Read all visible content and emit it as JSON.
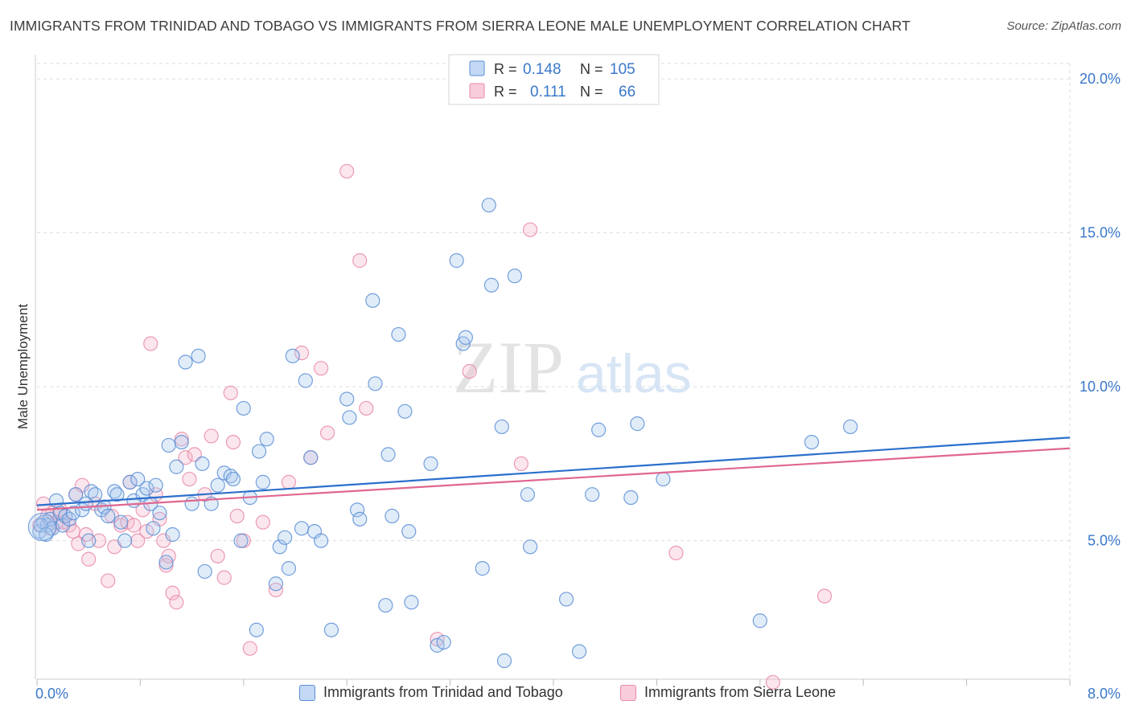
{
  "header": {
    "title": "IMMIGRANTS FROM TRINIDAD AND TOBAGO VS IMMIGRANTS FROM SIERRA LEONE MALE UNEMPLOYMENT CORRELATION CHART",
    "source": "Source: ZipAtlas.com"
  },
  "watermark": {
    "zip": "ZIP",
    "atlas": "atlas"
  },
  "legend": {
    "r_label": "R =",
    "n_label": "N =",
    "rows": [
      {
        "r": "0.148",
        "n": "105"
      },
      {
        "r": "0.111",
        "n": "66"
      }
    ]
  },
  "colors": {
    "blue_fill": "#a8c8ef",
    "blue_stroke": "#5b8fd6",
    "blue_line": "#2b6fcc",
    "pink_fill": "#f5b7ca",
    "pink_stroke": "#e88aa8",
    "pink_line": "#e0678f",
    "axis_text": "#3a78c9",
    "grid": "#dddddd"
  },
  "chart_data": {
    "type": "scatter",
    "ylabel": "Male Unemployment",
    "xlim": [
      0,
      8
    ],
    "ylim": [
      0.5,
      20.5
    ],
    "x_ticks": [
      "0.0%",
      "8.0%"
    ],
    "y_ticks": [
      {
        "value": 5,
        "label": "5.0%"
      },
      {
        "value": 10,
        "label": "10.0%"
      },
      {
        "value": 15,
        "label": "15.0%"
      },
      {
        "value": 20,
        "label": "20.0%"
      }
    ],
    "series": [
      {
        "name": "Immigrants from Trinidad and Tobago",
        "color": "blue",
        "trend": {
          "x0": 0,
          "y0": 6.15,
          "x1": 8,
          "y1": 8.35
        },
        "points": [
          [
            0.02,
            5.3
          ],
          [
            0.05,
            5.6
          ],
          [
            0.08,
            5.5
          ],
          [
            0.1,
            5.7
          ],
          [
            0.12,
            5.4
          ],
          [
            0.15,
            6.3
          ],
          [
            0.18,
            5.9
          ],
          [
            0.2,
            5.5
          ],
          [
            0.22,
            5.8
          ],
          [
            0.25,
            5.7
          ],
          [
            0.28,
            5.9
          ],
          [
            0.3,
            6.5
          ],
          [
            0.35,
            6.0
          ],
          [
            0.38,
            6.2
          ],
          [
            0.42,
            6.6
          ],
          [
            0.45,
            6.5
          ],
          [
            0.5,
            6.0
          ],
          [
            0.52,
            6.1
          ],
          [
            0.55,
            5.8
          ],
          [
            0.6,
            6.6
          ],
          [
            0.62,
            6.5
          ],
          [
            0.65,
            5.6
          ],
          [
            0.68,
            5.0
          ],
          [
            0.72,
            6.9
          ],
          [
            0.75,
            6.3
          ],
          [
            0.78,
            7.0
          ],
          [
            0.82,
            6.5
          ],
          [
            0.85,
            6.7
          ],
          [
            0.88,
            6.2
          ],
          [
            0.9,
            5.4
          ],
          [
            0.92,
            6.8
          ],
          [
            0.95,
            5.9
          ],
          [
            1.0,
            4.3
          ],
          [
            1.02,
            8.1
          ],
          [
            1.05,
            5.2
          ],
          [
            1.08,
            7.4
          ],
          [
            1.12,
            8.2
          ],
          [
            1.15,
            10.8
          ],
          [
            1.2,
            6.2
          ],
          [
            1.25,
            11.0
          ],
          [
            1.28,
            7.5
          ],
          [
            1.3,
            4.0
          ],
          [
            1.35,
            6.2
          ],
          [
            1.4,
            6.8
          ],
          [
            1.45,
            7.2
          ],
          [
            1.5,
            7.1
          ],
          [
            1.52,
            7.0
          ],
          [
            1.58,
            5.0
          ],
          [
            1.6,
            9.3
          ],
          [
            1.65,
            6.4
          ],
          [
            1.7,
            2.1
          ],
          [
            1.72,
            7.9
          ],
          [
            1.75,
            6.9
          ],
          [
            1.78,
            8.3
          ],
          [
            1.85,
            3.6
          ],
          [
            1.88,
            4.8
          ],
          [
            1.92,
            5.1
          ],
          [
            1.95,
            4.1
          ],
          [
            1.98,
            11.0
          ],
          [
            2.05,
            5.4
          ],
          [
            2.08,
            10.2
          ],
          [
            2.12,
            7.7
          ],
          [
            2.15,
            5.3
          ],
          [
            2.2,
            5.0
          ],
          [
            2.28,
            2.1
          ],
          [
            2.4,
            9.6
          ],
          [
            2.42,
            9.0
          ],
          [
            2.48,
            6.0
          ],
          [
            2.5,
            5.7
          ],
          [
            2.6,
            12.8
          ],
          [
            2.62,
            10.1
          ],
          [
            2.7,
            2.9
          ],
          [
            2.72,
            7.8
          ],
          [
            2.75,
            5.8
          ],
          [
            2.8,
            11.7
          ],
          [
            2.85,
            9.2
          ],
          [
            2.88,
            5.3
          ],
          [
            2.9,
            3.0
          ],
          [
            3.05,
            7.5
          ],
          [
            3.1,
            1.6
          ],
          [
            3.15,
            1.7
          ],
          [
            3.25,
            14.1
          ],
          [
            3.3,
            11.4
          ],
          [
            3.32,
            11.6
          ],
          [
            3.45,
            4.1
          ],
          [
            3.5,
            15.9
          ],
          [
            3.52,
            13.3
          ],
          [
            3.6,
            8.7
          ],
          [
            3.62,
            1.1
          ],
          [
            3.7,
            13.6
          ],
          [
            3.8,
            6.5
          ],
          [
            3.82,
            4.8
          ],
          [
            4.1,
            3.1
          ],
          [
            4.2,
            1.4
          ],
          [
            4.3,
            6.5
          ],
          [
            4.35,
            8.6
          ],
          [
            4.6,
            6.4
          ],
          [
            4.65,
            8.8
          ],
          [
            4.85,
            7.0
          ],
          [
            5.6,
            2.4
          ],
          [
            6.0,
            8.2
          ],
          [
            6.3,
            8.7
          ],
          [
            0.03,
            5.5
          ],
          [
            0.07,
            5.2
          ],
          [
            0.4,
            5.0
          ]
        ]
      },
      {
        "name": "Immigrants from Sierra Leone",
        "color": "pink",
        "trend": {
          "x0": 0,
          "y0": 6.0,
          "x1": 8,
          "y1": 8.0
        },
        "points": [
          [
            0.02,
            5.5
          ],
          [
            0.05,
            6.2
          ],
          [
            0.08,
            5.8
          ],
          [
            0.12,
            5.9
          ],
          [
            0.15,
            5.6
          ],
          [
            0.2,
            5.6
          ],
          [
            0.22,
            5.8
          ],
          [
            0.25,
            5.5
          ],
          [
            0.28,
            5.3
          ],
          [
            0.3,
            6.5
          ],
          [
            0.35,
            6.8
          ],
          [
            0.38,
            5.2
          ],
          [
            0.4,
            4.4
          ],
          [
            0.45,
            6.2
          ],
          [
            0.48,
            5.0
          ],
          [
            0.55,
            3.7
          ],
          [
            0.58,
            5.8
          ],
          [
            0.6,
            4.8
          ],
          [
            0.65,
            5.5
          ],
          [
            0.7,
            5.6
          ],
          [
            0.72,
            6.9
          ],
          [
            0.75,
            5.5
          ],
          [
            0.78,
            5.0
          ],
          [
            0.82,
            6.0
          ],
          [
            0.85,
            5.3
          ],
          [
            0.88,
            11.4
          ],
          [
            0.92,
            6.5
          ],
          [
            0.95,
            5.7
          ],
          [
            0.98,
            5.0
          ],
          [
            1.0,
            4.2
          ],
          [
            1.02,
            4.5
          ],
          [
            1.05,
            3.3
          ],
          [
            1.08,
            3.0
          ],
          [
            1.12,
            8.3
          ],
          [
            1.15,
            7.7
          ],
          [
            1.18,
            7.0
          ],
          [
            1.22,
            7.8
          ],
          [
            1.3,
            6.5
          ],
          [
            1.35,
            8.4
          ],
          [
            1.4,
            4.5
          ],
          [
            1.45,
            3.8
          ],
          [
            1.5,
            9.8
          ],
          [
            1.52,
            8.2
          ],
          [
            1.55,
            5.8
          ],
          [
            1.6,
            5.0
          ],
          [
            1.65,
            1.5
          ],
          [
            1.75,
            5.6
          ],
          [
            1.85,
            3.4
          ],
          [
            1.95,
            6.9
          ],
          [
            2.05,
            11.1
          ],
          [
            2.12,
            7.7
          ],
          [
            2.2,
            10.6
          ],
          [
            2.25,
            8.5
          ],
          [
            2.4,
            17.0
          ],
          [
            2.5,
            14.1
          ],
          [
            2.55,
            9.3
          ],
          [
            3.1,
            1.8
          ],
          [
            3.35,
            10.5
          ],
          [
            3.75,
            7.5
          ],
          [
            3.82,
            15.1
          ],
          [
            4.95,
            4.6
          ],
          [
            5.7,
            0.4
          ],
          [
            6.1,
            3.2
          ],
          [
            0.1,
            5.4
          ],
          [
            0.18,
            6.0
          ],
          [
            0.32,
            4.9
          ]
        ]
      }
    ]
  }
}
